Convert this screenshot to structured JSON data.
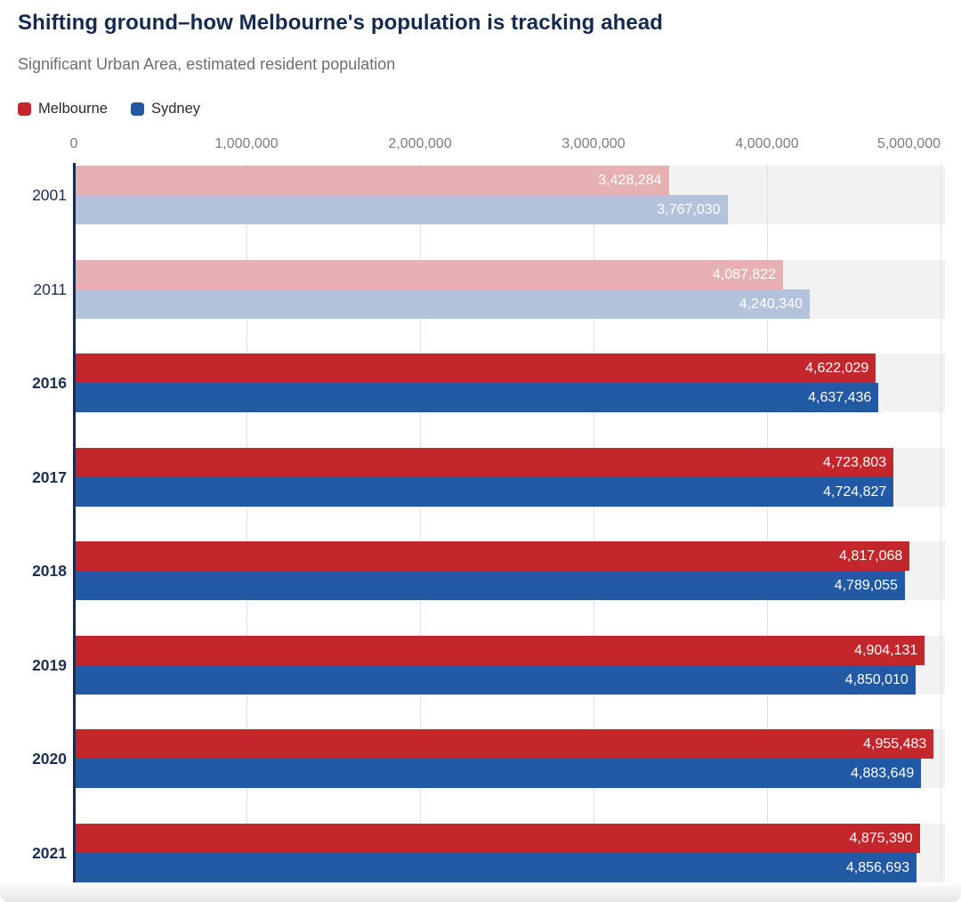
{
  "header": {
    "title": "Shifting ground–how Melbourne's population is tracking ahead",
    "subtitle": "Significant Urban Area, estimated resident population"
  },
  "legend": {
    "items": [
      {
        "name": "melbourne",
        "label": "Melbourne",
        "color": "#c3272b"
      },
      {
        "name": "sydney",
        "label": "Sydney",
        "color": "#2159a4"
      }
    ]
  },
  "axis": {
    "ticks": [
      {
        "value": 0,
        "label": "0"
      },
      {
        "value": 1000000,
        "label": "1,000,000"
      },
      {
        "value": 2000000,
        "label": "2,000,000"
      },
      {
        "value": 3000000,
        "label": "3,000,000"
      },
      {
        "value": 4000000,
        "label": "4,000,000"
      },
      {
        "value": 5000000,
        "label": "5,000,000"
      }
    ]
  },
  "chart_data": {
    "type": "bar",
    "orientation": "horizontal",
    "title": "Shifting ground–how Melbourne's population is tracking ahead",
    "subtitle": "Significant Urban Area, estimated resident population",
    "xlim": [
      0,
      5000000
    ],
    "grid": true,
    "legend_position": "top-left",
    "categories": [
      "2001",
      "2011",
      "2016",
      "2017",
      "2018",
      "2019",
      "2020",
      "2021"
    ],
    "muted_categories": [
      true,
      true,
      false,
      false,
      false,
      false,
      false,
      false
    ],
    "series": [
      {
        "name": "Melbourne",
        "color": "#c3272b",
        "muted_color": "#e7b0b2",
        "values": [
          3428284,
          4087822,
          4622029,
          4723803,
          4817068,
          4904131,
          4955483,
          4875390
        ],
        "labels": [
          "3,428,284",
          "4,087,822",
          "4,622,029",
          "4,723,803",
          "4,817,068",
          "4,904,131",
          "4,955,483",
          "4,875,390"
        ]
      },
      {
        "name": "Sydney",
        "color": "#2159a4",
        "muted_color": "#b4c3dc",
        "values": [
          3767030,
          4240340,
          4637436,
          4724827,
          4789055,
          4850010,
          4883649,
          4856693
        ],
        "labels": [
          "3,767,030",
          "4,240,340",
          "4,637,436",
          "4,724,827",
          "4,789,055",
          "4,850,010",
          "4,883,649",
          "4,856,693"
        ]
      }
    ]
  }
}
